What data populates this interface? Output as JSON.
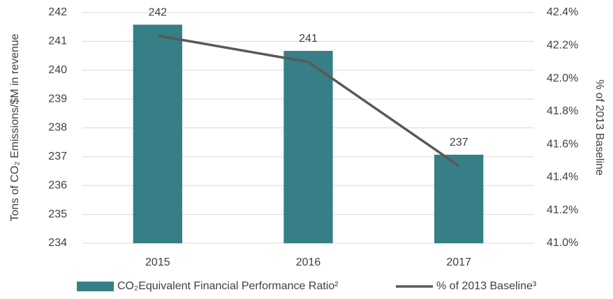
{
  "chart_data": {
    "type": "bar",
    "categories": [
      "2015",
      "2016",
      "2017"
    ],
    "series": [
      {
        "name": "CO₂Equivalent Financial Performance Ratio²",
        "color": "#367f86",
        "type": "bar",
        "values": [
          241.58,
          240.67,
          237.07
        ],
        "value_labels": [
          "242",
          "241",
          "237"
        ]
      },
      {
        "name": "% of 2013 Baseline³",
        "color": "#595959",
        "type": "line",
        "axis": "y2",
        "values": [
          42.26,
          42.1,
          41.47
        ]
      }
    ],
    "ylabel": "Tons of CO₂ Emissions/$M in revenue",
    "y2label": "% of 2013 Baseline",
    "ylim": [
      234,
      242
    ],
    "yticks": [
      234,
      235,
      236,
      237,
      238,
      239,
      240,
      241,
      242
    ],
    "y2lim": [
      41.0,
      42.4
    ],
    "y2ticks": [
      {
        "value": 41.0,
        "label": "41.0%"
      },
      {
        "value": 41.2,
        "label": "41.2%"
      },
      {
        "value": 41.4,
        "label": "41.4%"
      },
      {
        "value": 41.6,
        "label": "41.6%"
      },
      {
        "value": 41.8,
        "label": "41.8%"
      },
      {
        "value": 42.0,
        "label": "42.0%"
      },
      {
        "value": 42.2,
        "label": "42.2%"
      },
      {
        "value": 42.4,
        "label": "42.4%"
      }
    ],
    "grid": true,
    "legend": "bottom"
  }
}
